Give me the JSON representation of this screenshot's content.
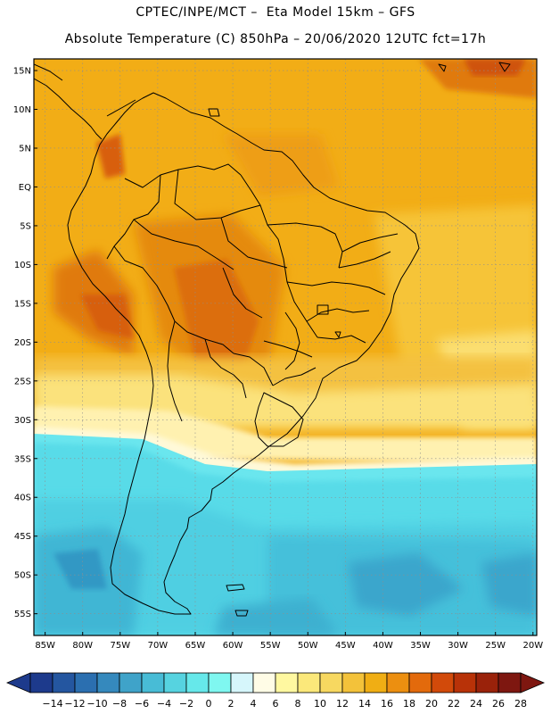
{
  "title_line1": "CPTEC/INPE/MCT –  Eta Model 15km – GFS",
  "title_line2": "Absolute Temperature (C) 850hPa – 20/06/2020 12UTC fct=17h",
  "lat_labels": [
    "15N",
    "10N",
    "5N",
    "EQ",
    "5S",
    "10S",
    "15S",
    "20S",
    "25S",
    "30S",
    "35S",
    "40S",
    "45S",
    "50S",
    "55S"
  ],
  "lat_values": [
    15,
    10,
    5,
    0,
    -5,
    -10,
    -15,
    -20,
    -25,
    -30,
    -35,
    -40,
    -45,
    -50,
    -55
  ],
  "lon_labels": [
    "85W",
    "80W",
    "75W",
    "70W",
    "65W",
    "60W",
    "55W",
    "50W",
    "45W",
    "40W",
    "35W",
    "30W",
    "25W",
    "20W"
  ],
  "lon_values": [
    -85,
    -80,
    -75,
    -70,
    -65,
    -60,
    -55,
    -50,
    -45,
    -40,
    -35,
    -30,
    -25,
    -20
  ],
  "colorbar": {
    "labels": [
      "-14",
      "-12",
      "-10",
      "-8",
      "-6",
      "-4",
      "-2",
      "0",
      "2",
      "4",
      "6",
      "8",
      "10",
      "12",
      "14",
      "16",
      "18",
      "20",
      "22",
      "24",
      "26",
      "28"
    ],
    "colors": [
      "#1d3a8c",
      "#2456a0",
      "#2b6fb0",
      "#3589bd",
      "#3fa3c9",
      "#48bcd6",
      "#56d3e0",
      "#66e8ea",
      "#7ff7f0",
      "#d6f6fb",
      "#fffce6",
      "#fff8a0",
      "#fbe87a",
      "#f7d860",
      "#f3c23a",
      "#f0ae14",
      "#ec8f10",
      "#e36a0c",
      "#d24a0a",
      "#b83208",
      "#9a220a",
      "#7e1710"
    ]
  },
  "colors": {
    "warm_orange": "#f2ad16",
    "hot": "#e07a10",
    "hotter": "#d55a0c",
    "yellow_light": "#fbe27c",
    "pale": "#fff9d0",
    "cyan": "#58dbe8",
    "cyan_light": "#72ecf0",
    "blue_mid": "#3fb6d4",
    "blue_deep": "#3298c4",
    "grid": "#9a9a9a",
    "coast": "#000000"
  }
}
